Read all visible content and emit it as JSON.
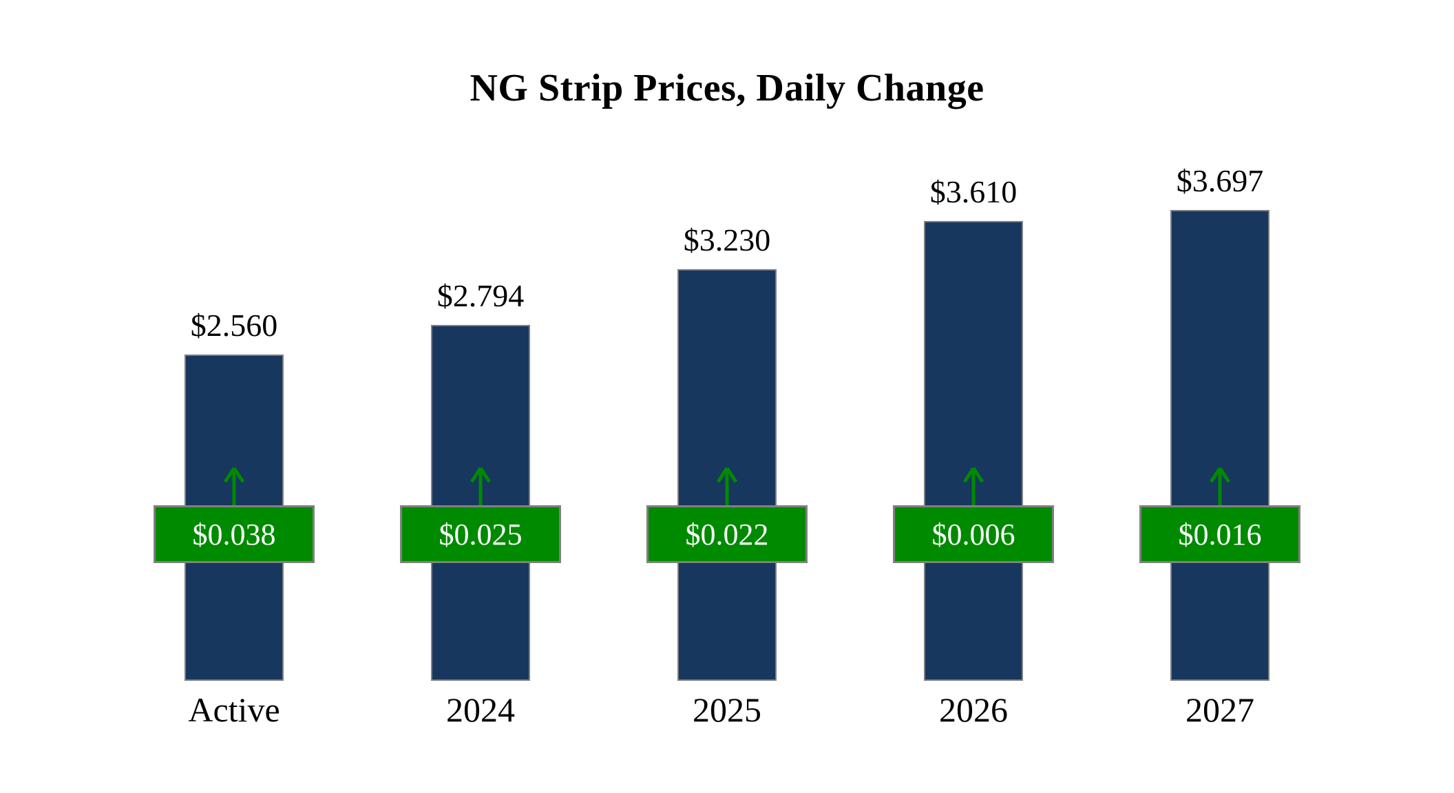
{
  "chart_data": {
    "type": "bar",
    "title": "NG Strip Prices, Daily Change",
    "categories": [
      "Active",
      "2024",
      "2025",
      "2026",
      "2027"
    ],
    "series": [
      {
        "name": "Strip Price",
        "values": [
          2.56,
          2.794,
          3.23,
          3.61,
          3.697
        ]
      },
      {
        "name": "Daily Change",
        "values": [
          0.038,
          0.025,
          0.022,
          0.006,
          0.016
        ]
      }
    ],
    "points": [
      {
        "category": "Active",
        "price_label": "$2.560",
        "change_label": "$0.038",
        "direction": "up"
      },
      {
        "category": "2024",
        "price_label": "$2.794",
        "change_label": "$0.025",
        "direction": "up"
      },
      {
        "category": "2025",
        "price_label": "$3.230",
        "change_label": "$0.022",
        "direction": "up"
      },
      {
        "category": "2026",
        "price_label": "$3.610",
        "change_label": "$0.006",
        "direction": "up"
      },
      {
        "category": "2027",
        "price_label": "$3.697",
        "change_label": "$0.016",
        "direction": "up"
      }
    ],
    "xlabel": "",
    "ylabel": "",
    "ylim": [
      0,
      4
    ],
    "grid": false,
    "legend": "none",
    "colors": {
      "bar": "#17375E",
      "badge": "#008A00",
      "badge_text": "#FFFFFF",
      "border": "#808080",
      "arrow": "#008A00",
      "text": "#000000",
      "background": "#FFFFFF"
    }
  }
}
